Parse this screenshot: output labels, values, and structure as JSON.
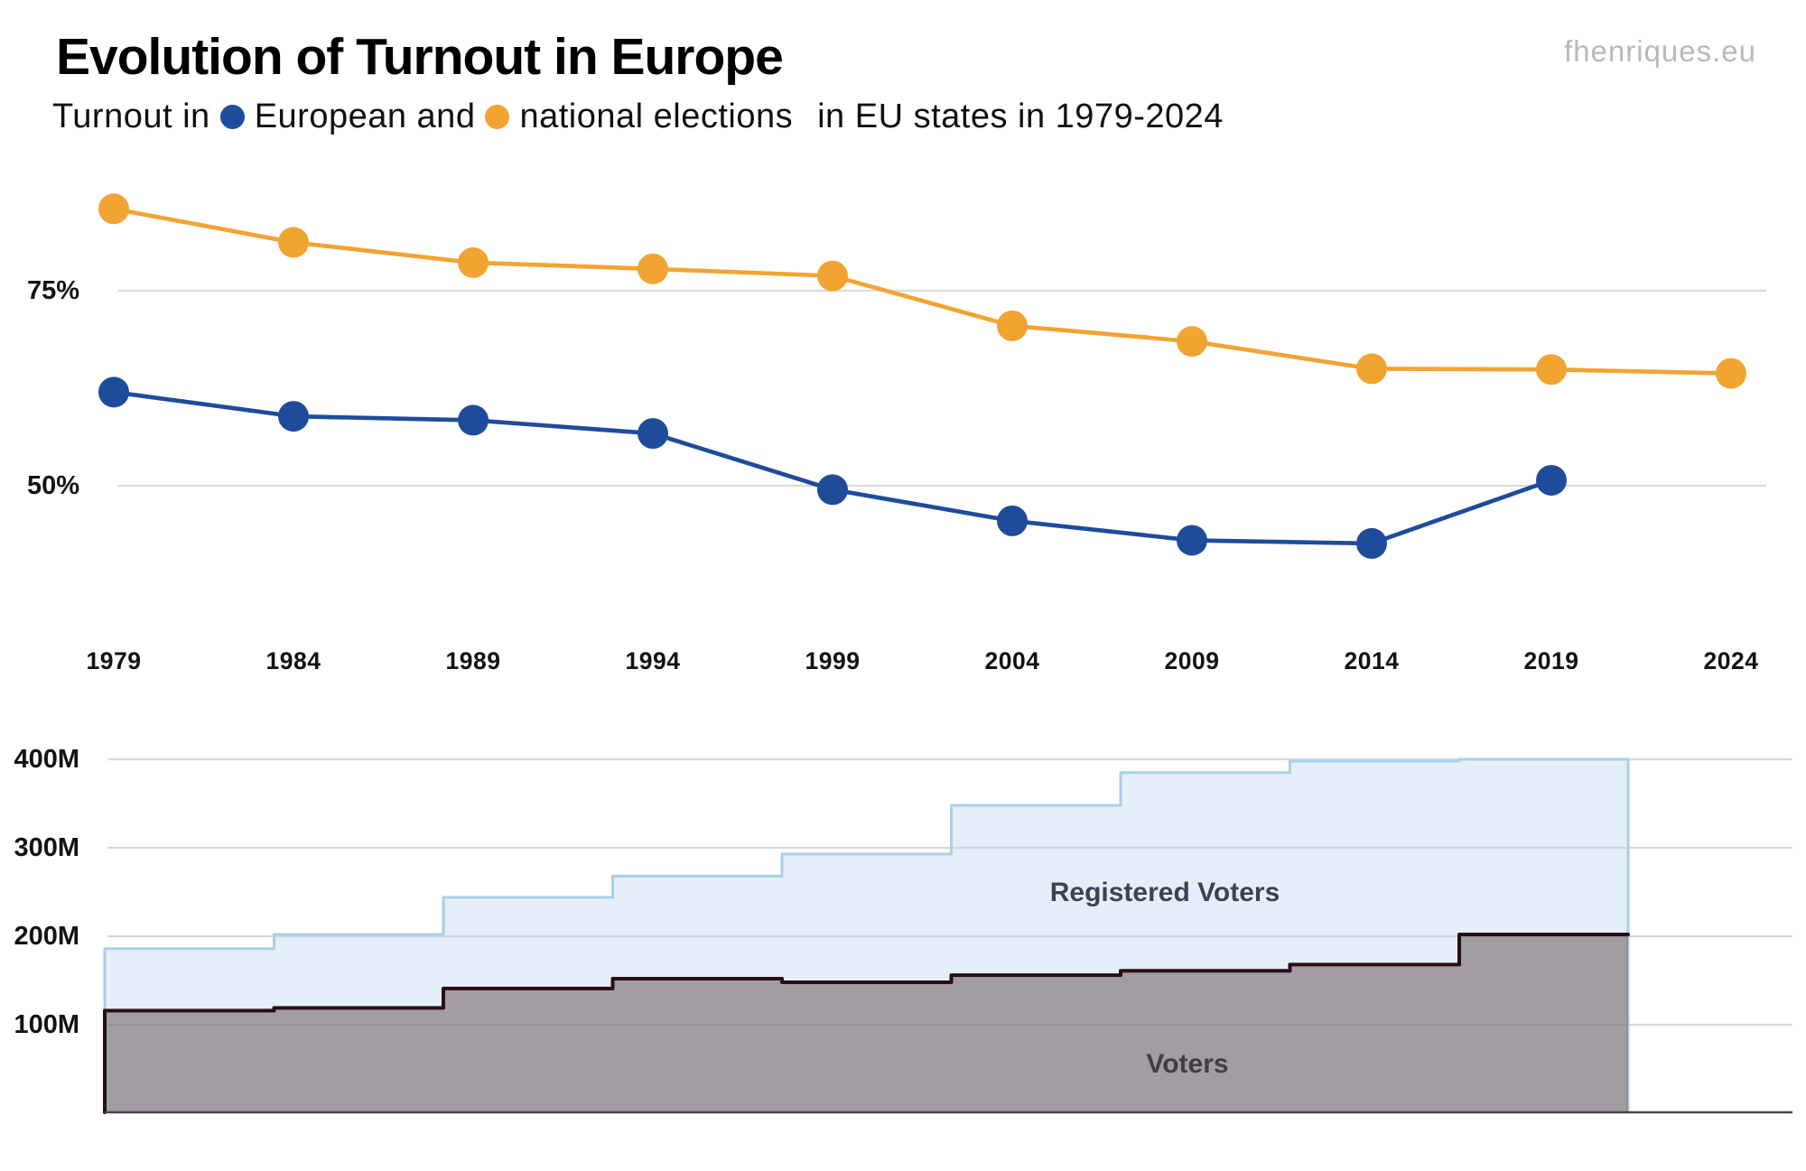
{
  "page": {
    "title": "Evolution of Turnout in Europe",
    "watermark": "fhenriques.eu",
    "subtitle": {
      "prefix": "Turnout in",
      "series1": "European and",
      "series2": "national elections",
      "suffix": "in EU states in 1979-2024"
    }
  },
  "colors": {
    "european": "#1E4C9B",
    "national": "#F2A432",
    "gridline": "#DBDBDB",
    "axis_text": "#121212",
    "baseline": "#474747",
    "registered_fill": "rgba(190,218,240,0.42)",
    "registered_stroke": "#A9CFE9",
    "voters_fill": "rgba(100,82,82,0.52)",
    "voters_stroke": "#2A0E16",
    "registered_label": "#3A4550",
    "voters_label": "#453C44"
  },
  "chart_data": [
    {
      "type": "line",
      "title": "Turnout in European and national elections in EU states in 1979-2024",
      "unit": "%",
      "x": [
        1979,
        1984,
        1989,
        1994,
        1999,
        2004,
        2009,
        2014,
        2019,
        2024
      ],
      "series": [
        {
          "name": "European elections",
          "color_key": "european",
          "values": [
            62.0,
            58.9,
            58.4,
            56.7,
            49.5,
            45.5,
            43.0,
            42.6,
            50.7,
            null
          ]
        },
        {
          "name": "national elections",
          "color_key": "national",
          "values": [
            85.5,
            81.2,
            78.6,
            77.8,
            76.9,
            70.5,
            68.5,
            65.0,
            64.9,
            64.4
          ]
        }
      ],
      "yticks": [
        {
          "label": "75%",
          "value": 75
        },
        {
          "label": "50%",
          "value": 50
        }
      ],
      "ylim": [
        38,
        90
      ],
      "grid": true,
      "legend_position": "in-subtitle"
    },
    {
      "type": "area",
      "title": "Registered voters and voters in European elections",
      "unit": "millions",
      "step": true,
      "x": [
        1979,
        1984,
        1989,
        1994,
        1999,
        2004,
        2009,
        2014,
        2019
      ],
      "x_extend_to": 2024,
      "series": [
        {
          "name": "Registered Voters",
          "values": [
            186,
            202,
            244,
            268,
            293,
            348,
            385,
            398,
            400
          ],
          "label_key": "registered_label",
          "fill_key": "registered_fill",
          "stroke_key": "registered_stroke"
        },
        {
          "name": "Voters",
          "values": [
            116,
            119,
            141,
            152,
            148,
            156,
            161,
            168,
            202
          ],
          "label_key": "voters_label",
          "fill_key": "voters_fill",
          "stroke_key": "voters_stroke"
        }
      ],
      "yticks": [
        {
          "label": "400M",
          "value": 400
        },
        {
          "label": "300M",
          "value": 300
        },
        {
          "label": "200M",
          "value": 200
        },
        {
          "label": "100M",
          "value": 100
        }
      ],
      "ylim": [
        0,
        430
      ],
      "grid": true
    }
  ]
}
